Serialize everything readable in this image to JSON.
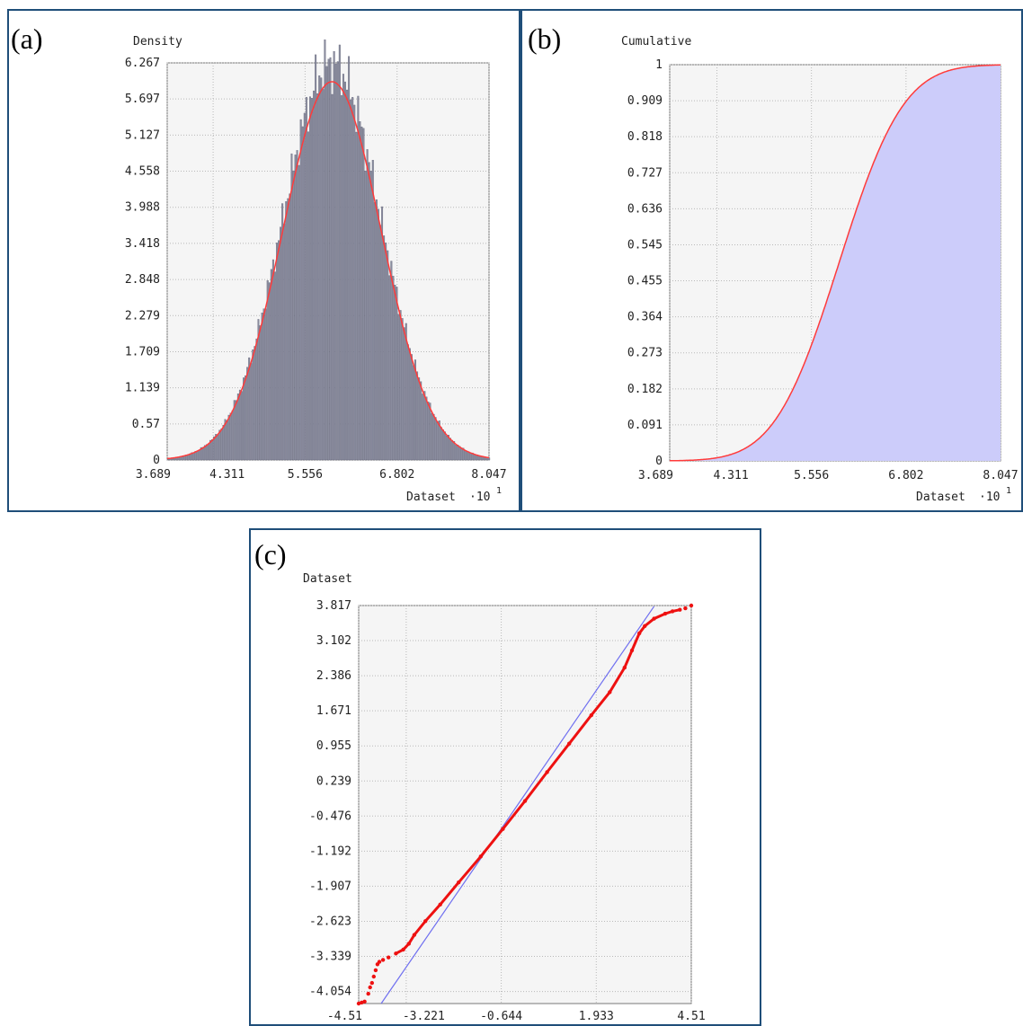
{
  "chart_data": [
    {
      "panel_label": "(a)",
      "type": "bar",
      "ylabel": "Density",
      "xlabel": "Dataset",
      "x_multiplier": "·10",
      "x_multiplier_exp": "1",
      "yticks": [
        "6.267",
        "5.697",
        "5.127",
        "4.558",
        "3.988",
        "3.418",
        "2.848",
        "2.279",
        "1.709",
        "1.139",
        "0.57",
        "0"
      ],
      "xticks": [
        "3.689",
        "4.311",
        "5.556",
        "6.802",
        "8.047"
      ],
      "xlim": [
        3.689,
        8.047
      ],
      "ylim": [
        0,
        6.267
      ],
      "histogram": {
        "mean": 5.92,
        "sd": 0.666,
        "bin_width": 0.025,
        "peak": 6.267
      },
      "fit_curve": {
        "name": "normal fit",
        "mean": 5.92,
        "sd": 0.666
      },
      "colors": {
        "bars": "#8a8c9e",
        "bar_edge": "#5d5f75",
        "fit": "#ff3b3b",
        "plot_bg": "#f5f5f5"
      },
      "grid": true
    },
    {
      "panel_label": "(b)",
      "type": "area",
      "ylabel": "Cumulative",
      "xlabel": "Dataset",
      "x_multiplier": "·10",
      "x_multiplier_exp": "1",
      "yticks": [
        "1",
        "0.909",
        "0.818",
        "0.727",
        "0.636",
        "0.545",
        "0.455",
        "0.364",
        "0.273",
        "0.182",
        "0.091",
        "0"
      ],
      "xticks": [
        "3.689",
        "4.311",
        "5.556",
        "6.802",
        "8.047"
      ],
      "xlim": [
        3.689,
        8.047
      ],
      "ylim": [
        0,
        1
      ],
      "cdf": {
        "mean": 5.92,
        "sd": 0.666
      },
      "colors": {
        "fill": "#ccccfa",
        "line": "#ff3b3b",
        "plot_bg": "#f5f5f5"
      },
      "grid": true
    },
    {
      "panel_label": "(c)",
      "type": "scatter",
      "ylabel": "Dataset",
      "yticks": [
        "3.817",
        "3.102",
        "2.386",
        "1.671",
        "0.955",
        "0.239",
        "-0.476",
        "-1.192",
        "-1.907",
        "-2.623",
        "-3.339",
        "-4.054"
      ],
      "xticks": [
        "-4.51",
        "-3.221",
        "-0.644",
        "1.933",
        "4.51"
      ],
      "xlim": [
        -4.51,
        4.51
      ],
      "ylim": [
        -4.3,
        3.817
      ],
      "reference_line": {
        "from": [
          -3.9,
          -4.3
        ],
        "to": [
          3.5,
          3.8
        ]
      },
      "qq_points": [
        [
          -4.51,
          -4.3
        ],
        [
          -4.43,
          -4.28
        ],
        [
          -4.35,
          -4.26
        ],
        [
          -4.25,
          -4.1
        ],
        [
          -4.2,
          -3.97
        ],
        [
          -4.15,
          -3.88
        ],
        [
          -4.1,
          -3.75
        ],
        [
          -4.05,
          -3.62
        ],
        [
          -4.0,
          -3.5
        ],
        [
          -3.95,
          -3.45
        ],
        [
          -3.85,
          -3.41
        ],
        [
          -3.7,
          -3.36
        ],
        [
          -3.5,
          -3.28
        ],
        [
          -3.3,
          -3.2
        ],
        [
          -3.15,
          -3.08
        ],
        [
          -3.0,
          -2.9
        ],
        [
          -2.7,
          -2.62
        ],
        [
          -2.3,
          -2.28
        ],
        [
          -1.8,
          -1.83
        ],
        [
          -1.2,
          -1.3
        ],
        [
          -0.6,
          -0.74
        ],
        [
          0.0,
          -0.17
        ],
        [
          0.6,
          0.42
        ],
        [
          1.2,
          1.0
        ],
        [
          1.8,
          1.58
        ],
        [
          2.3,
          2.05
        ],
        [
          2.7,
          2.55
        ],
        [
          2.9,
          2.9
        ],
        [
          3.1,
          3.25
        ],
        [
          3.25,
          3.4
        ],
        [
          3.5,
          3.55
        ],
        [
          3.8,
          3.65
        ],
        [
          4.0,
          3.7
        ],
        [
          4.2,
          3.73
        ],
        [
          4.35,
          3.76
        ],
        [
          4.51,
          3.817
        ]
      ],
      "colors": {
        "points": "#ee1111",
        "line": "#6f6ff0",
        "plot_bg": "#f5f5f5"
      },
      "grid": true
    }
  ]
}
